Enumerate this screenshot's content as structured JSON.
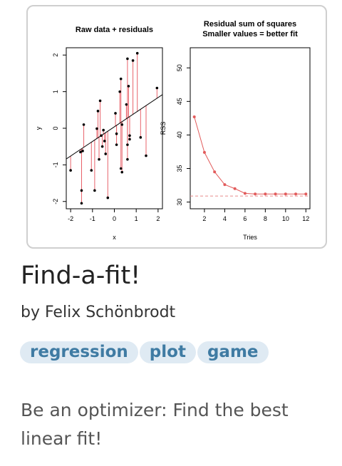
{
  "app": {
    "title": "Find-a-fit!",
    "author": "by Felix Schönbrodt",
    "tags": [
      "regression",
      "plot",
      "game"
    ],
    "description": "Be an optimizer: Find the best linear fit!"
  },
  "chart_data": [
    {
      "type": "scatter",
      "title": "Raw data + residuals",
      "xlabel": "x",
      "ylabel": "y",
      "xlim": [
        -2.2,
        2.2
      ],
      "ylim": [
        -2.2,
        2.2
      ],
      "xticks": [
        -2,
        -1,
        0,
        1,
        2
      ],
      "yticks": [
        -2,
        -1,
        0,
        1,
        2
      ],
      "fit_line": {
        "intercept": 0.04,
        "slope": 0.4
      },
      "points": [
        [
          -2.0,
          -1.15
        ],
        [
          -1.55,
          -0.65
        ],
        [
          -1.5,
          -1.7
        ],
        [
          -1.5,
          -2.05
        ],
        [
          -1.45,
          -0.62
        ],
        [
          -1.4,
          0.1
        ],
        [
          -1.05,
          -1.15
        ],
        [
          -0.9,
          -1.7
        ],
        [
          -0.8,
          -0.01
        ],
        [
          -0.75,
          0.47
        ],
        [
          -0.7,
          -0.85
        ],
        [
          -0.65,
          0.75
        ],
        [
          -0.6,
          -0.2
        ],
        [
          -0.55,
          -0.5
        ],
        [
          -0.5,
          -0.05
        ],
        [
          -0.45,
          -0.35
        ],
        [
          -0.4,
          -0.7
        ],
        [
          -0.3,
          -1.9
        ],
        [
          0.05,
          0.41
        ],
        [
          0.1,
          -0.15
        ],
        [
          0.1,
          -0.45
        ],
        [
          0.25,
          1.0
        ],
        [
          0.3,
          1.35
        ],
        [
          0.3,
          -1.1
        ],
        [
          0.35,
          -1.2
        ],
        [
          0.35,
          0.1
        ],
        [
          0.55,
          0.65
        ],
        [
          0.6,
          -0.45
        ],
        [
          0.6,
          1.9
        ],
        [
          0.65,
          1.15
        ],
        [
          0.7,
          -0.2
        ],
        [
          0.7,
          -0.3
        ],
        [
          0.6,
          -0.85
        ],
        [
          0.85,
          1.85
        ],
        [
          1.05,
          2.05
        ],
        [
          1.2,
          -0.25
        ],
        [
          1.45,
          -0.75
        ],
        [
          1.95,
          1.1
        ]
      ]
    },
    {
      "type": "line",
      "title": "Residual sum of squares",
      "subtitle": "Smaller values = better fit",
      "xlabel": "Tries",
      "ylabel": "RSS",
      "xlim": [
        0.6,
        12.4
      ],
      "ylim": [
        29.0,
        53.0
      ],
      "xticks": [
        2,
        4,
        6,
        8,
        10,
        12
      ],
      "yticks": [
        30,
        35,
        40,
        45,
        50
      ],
      "reference_line": 30.9,
      "x": [
        1,
        2,
        3,
        4,
        5,
        6,
        7,
        8,
        9,
        10,
        11,
        12
      ],
      "y": [
        42.7,
        37.4,
        34.5,
        32.6,
        32.0,
        31.3,
        31.2,
        31.2,
        31.2,
        31.2,
        31.2,
        31.2
      ],
      "color": "#e25b5b"
    }
  ]
}
